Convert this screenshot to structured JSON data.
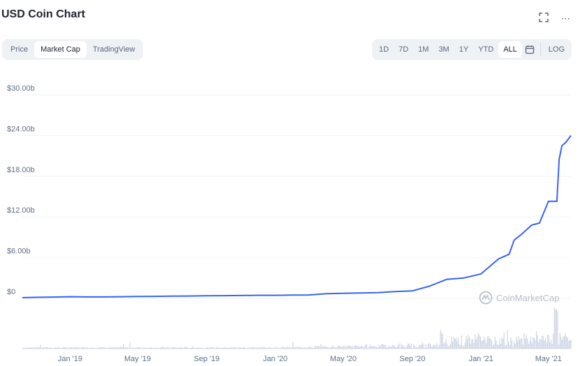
{
  "header": {
    "title": "USD Coin Chart",
    "fullscreen_icon": "expand-icon",
    "more_label": "⋯"
  },
  "tabs": [
    {
      "label": "Price"
    },
    {
      "label": "Market Cap"
    },
    {
      "label": "TradingView"
    }
  ],
  "ranges": [
    {
      "label": "1D"
    },
    {
      "label": "7D"
    },
    {
      "label": "1M"
    },
    {
      "label": "3M"
    },
    {
      "label": "1Y"
    },
    {
      "label": "YTD"
    },
    {
      "label": "ALL"
    }
  ],
  "calendar_icon": "calendar-icon",
  "log_label": "LOG",
  "watermark": "CoinMarketCap",
  "colors": {
    "line": "#3861fb",
    "volume": "#cfd6e4",
    "grid": "#eff2f5"
  },
  "chart_data": {
    "type": "line",
    "y_ticks": [
      "$30.00b",
      "$24.00b",
      "$18.00b",
      "$12.00b",
      "$6.00b",
      "$0"
    ],
    "y_tick_values": [
      30,
      24,
      18,
      12,
      6,
      0
    ],
    "x_ticks": [
      "Jan '19",
      "May '19",
      "Sep '19",
      "Jan '20",
      "May '20",
      "Sep '20",
      "Jan '21",
      "May '21"
    ],
    "ylim": [
      0,
      30
    ],
    "unit": "b",
    "series": [
      {
        "name": "",
        "x": [
          "2018-10-08",
          "2018-11-01",
          "2018-12-01",
          "2019-01-01",
          "2019-02-01",
          "2019-03-01",
          "2019-04-01",
          "2019-05-01",
          "2019-06-01",
          "2019-07-01",
          "2019-08-01",
          "2019-09-01",
          "2019-10-01",
          "2019-11-01",
          "2019-12-01",
          "2020-01-01",
          "2020-02-01",
          "2020-03-01",
          "2020-04-01",
          "2020-05-01",
          "2020-06-01",
          "2020-07-01",
          "2020-08-01",
          "2020-09-01",
          "2020-10-01",
          "2020-11-01",
          "2020-12-01",
          "2021-01-01",
          "2021-02-01",
          "2021-02-20",
          "2021-03-01",
          "2021-03-15",
          "2021-04-01",
          "2021-04-15",
          "2021-05-01",
          "2021-05-16",
          "2021-05-20",
          "2021-05-25",
          "2021-06-01",
          "2021-06-10"
        ],
        "values": [
          0.1,
          0.15,
          0.2,
          0.25,
          0.22,
          0.22,
          0.25,
          0.28,
          0.3,
          0.33,
          0.35,
          0.38,
          0.4,
          0.42,
          0.45,
          0.45,
          0.48,
          0.5,
          0.7,
          0.75,
          0.8,
          0.85,
          1.0,
          1.1,
          1.8,
          2.8,
          3.0,
          3.6,
          5.8,
          6.5,
          8.6,
          9.5,
          10.8,
          11.1,
          14.3,
          14.3,
          20.5,
          22.5,
          23.0,
          24.0
        ]
      }
    ]
  }
}
